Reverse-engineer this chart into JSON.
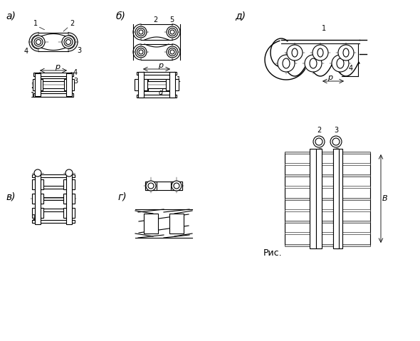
{
  "bg_color": "#ffffff",
  "line_color": "#000000",
  "hatch_color": "#000000",
  "gray_fill": "#d0d0d0",
  "label_a": "a)",
  "label_b": "б)",
  "label_v": "в)",
  "label_g": "г)",
  "label_d": "д)",
  "label_ris": "Рис.",
  "fig_width": 5.9,
  "fig_height": 4.79,
  "dpi": 100
}
